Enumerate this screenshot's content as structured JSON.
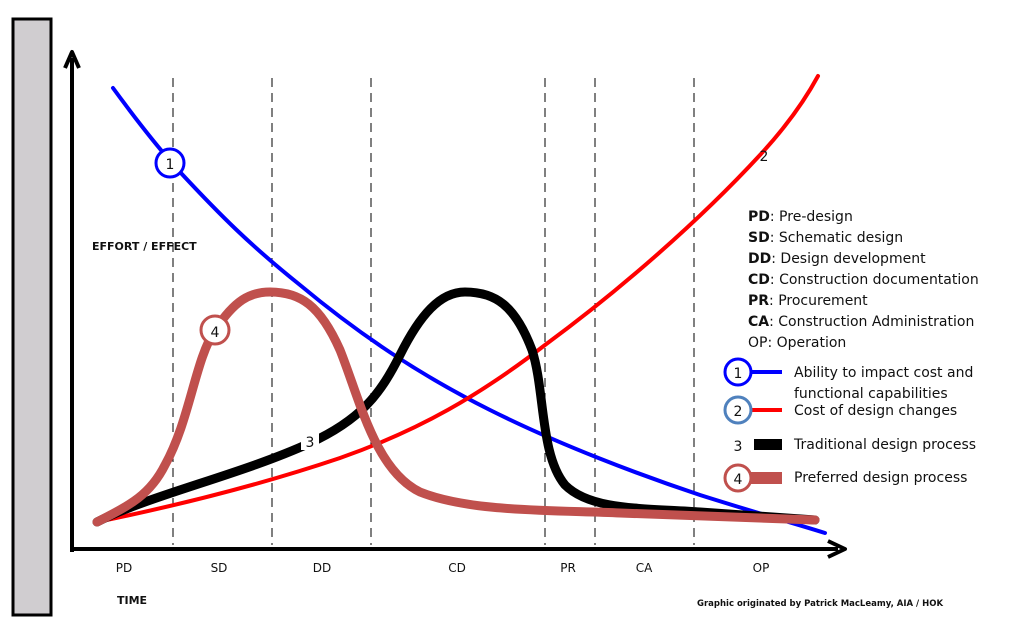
{
  "y_axis_label": "EFFORT / EFFECT",
  "x_axis_label": "TIME",
  "credit": "Graphic originated by Patrick MacLeamy, AIA / HOK",
  "phases": [
    "PD",
    "SD",
    "DD",
    "CD",
    "PR",
    "CA",
    "OP"
  ],
  "abbreviations": [
    {
      "abbr": "PD",
      "text": ": Pre-design"
    },
    {
      "abbr": "SD",
      "text": ": Schematic design"
    },
    {
      "abbr": "DD",
      "text": ": Design development"
    },
    {
      "abbr": "CD",
      "text": ": Construction documentation"
    },
    {
      "abbr": "PR",
      "text": ": Procurement"
    },
    {
      "abbr": "CA",
      "text": ": Construction Administration"
    },
    {
      "abbr": "OP",
      "text": ": Operation"
    }
  ],
  "curves": [
    {
      "number": "1",
      "label_line1": "Ability to impact cost and",
      "label_line2": "functional capabilities",
      "color": "#0000ff",
      "marker_color": "#0000ff"
    },
    {
      "number": "2",
      "label_line1": "Cost of design changes",
      "color": "#ff0000",
      "marker_color": "#4f81bd"
    },
    {
      "number": "3",
      "label_line1": "Traditional design process",
      "color": "#000000"
    },
    {
      "number": "4",
      "label_line1": "Preferred design process",
      "color": "#c0504d",
      "marker_color": "#c0504d"
    }
  ],
  "colors": {
    "side_bar": "#d0cdd0",
    "axis": "#000000"
  }
}
